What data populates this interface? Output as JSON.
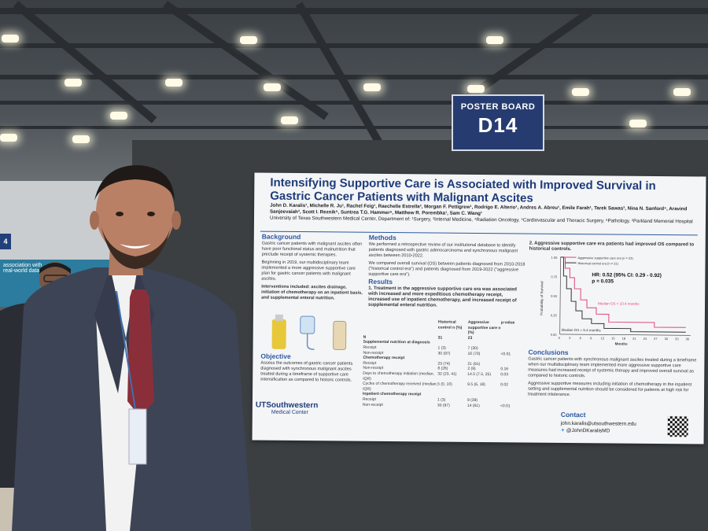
{
  "sign": {
    "line1": "POSTER BOARD",
    "line2": "D14"
  },
  "left_sign": "4",
  "banner_text": "association with\nreal-world data",
  "poster": {
    "title": "Intensifying Supportive Care is Associated with Improved Survival in Gastric Cancer Patients with Malignant Ascites",
    "authors": "John D. Karalis¹, Michelle R. Ju¹, Rachel Feig¹, Raechelle Estrella², Morgan F. Pettigrew¹, Rodrigo E. Alterio¹, Andres A. Abreu¹, Emile Farah¹, Tarek Sawas³, Nina N. Sanford⁴, Aravind Sanjeevaiah³, Scott I. Reznik⁵, Suntrea T.G. Hammer⁶, Matthew R. Porembka¹, Sam C. Wang¹",
    "affiliation": "University of Texas Southwestern Medical Center, Department of: ¹Surgery, ³Internal Medicine, ⁴Radiation Oncology, ⁵Cardiovascular and Thoracic Surgery, ⁶Pathology. ²Parkland Memorial Hospital",
    "background_h": "Background",
    "background": [
      "Gastric cancer patients with malignant ascites often have poor functional status and malnutrition that preclude receipt of systemic therapies.",
      "Beginning in 2019, our multidisciplinary team implemented a more aggressive supportive care plan for gastric cancer patients with malignant ascites.",
      "Interventions included: ascites drainage, initiation of chemotherapy on an inpatient basis, and supplemental enteral nutrition."
    ],
    "objective_h": "Objective",
    "objective": "Assess the outcomes of gastric cancer patients diagnosed with synchronous malignant ascites treated during a timeframe of supportive care intensification as compared to historic controls.",
    "methods_h": "Methods",
    "methods": [
      "We performed a retrospective review of our institutional database to identify patients diagnosed with gastric adenocarcinoma and synchronous malignant ascites between 2010-2022.",
      "We compared overall survival (OS) between patients diagnosed from 2010-2018 (\"historical control era\") and patients diagnosed from 2019-2022 (\"aggressive supportive care era\")."
    ],
    "results_h": "Results",
    "results_1": "1. Treatment in the aggressive supportive care era was associated with increased and more expeditious chemotherapy receipt, increased use of inpatient chemotherapy, and increased receipt of supplemental enteral nutrition.",
    "table": {
      "headers": [
        "",
        "Historical control n (%)",
        "Aggressive supportive care n (%)",
        "p-value"
      ],
      "rows": [
        [
          "N",
          "31",
          "23",
          ""
        ],
        [
          "Supplemental nutrition at diagnosis",
          "",
          "",
          ""
        ],
        [
          "Receipt",
          "1 (3)",
          "7 (30)",
          ""
        ],
        [
          "Non-receipt",
          "30 (97)",
          "16 (70)",
          "<0.01"
        ],
        [
          "Chemotherapy receipt",
          "",
          "",
          ""
        ],
        [
          "Receipt",
          "23 (74)",
          "21 (91)",
          ""
        ],
        [
          "Non-receipt",
          "8 (26)",
          "2 (9)",
          "0.16"
        ],
        [
          "Days to chemotherapy initiation (median, IQR)",
          "32 (23, 41)",
          "14.5 (7.5, 25)",
          "0.03"
        ],
        [
          "Cycles of chemotherapy received (median, IQR)",
          "5 (0, 10)",
          "9.5 (6, 18)",
          "0.02"
        ],
        [
          "Inpatient chemotherapy receipt",
          "",
          "",
          ""
        ],
        [
          "Receipt",
          "1 (3)",
          "9 (39)",
          ""
        ],
        [
          "Non-receipt",
          "30 (97)",
          "14 (61)",
          "<0.01"
        ]
      ]
    },
    "results_2": "2. Aggressive supportive care era patients had improved OS compared to historical controls.",
    "km": {
      "legend": [
        "Aggressive supportive care era (n = 23)",
        "Historical control era (n = 31)"
      ],
      "hr": "HR: 0.52 (95% CI: 0.29 - 0.92)",
      "p": "p = 0.035",
      "median1": "Median OS = 10.4 months",
      "median2": "Median OS = 5.4 months",
      "ylabel": "Probability of Survival",
      "xlabel": "Months",
      "yticks": [
        "1.00",
        "0.75",
        "0.50",
        "0.25",
        "0.00"
      ],
      "xticks": [
        "0",
        "3",
        "6",
        "9",
        "12",
        "15",
        "18",
        "21",
        "24",
        "27",
        "30",
        "33",
        "36"
      ],
      "colors": {
        "aggressive": "#e0457a",
        "historical": "#333333"
      }
    },
    "conclusions_h": "Conclusions",
    "conclusions": [
      "Gastric cancer patients with synchronous malignant ascites treated during a timeframe when our multidisciplinary team implemented more aggressive supportive care measures had increased receipt of systemic therapy and improved overall survival as compared to historic controls.",
      "Aggressive supportive measures including initiation of chemotherapy in the inpatient setting and supplemental nutrition should be considered for patients at high risk for treatment intolerance."
    ],
    "contact_h": "Contact",
    "email": "john.karalis@utsouthwestern.edu",
    "twitter": "@JohnDKaralisMD",
    "logo1": "UTSouthwestern",
    "logo2": "Medical Center"
  }
}
